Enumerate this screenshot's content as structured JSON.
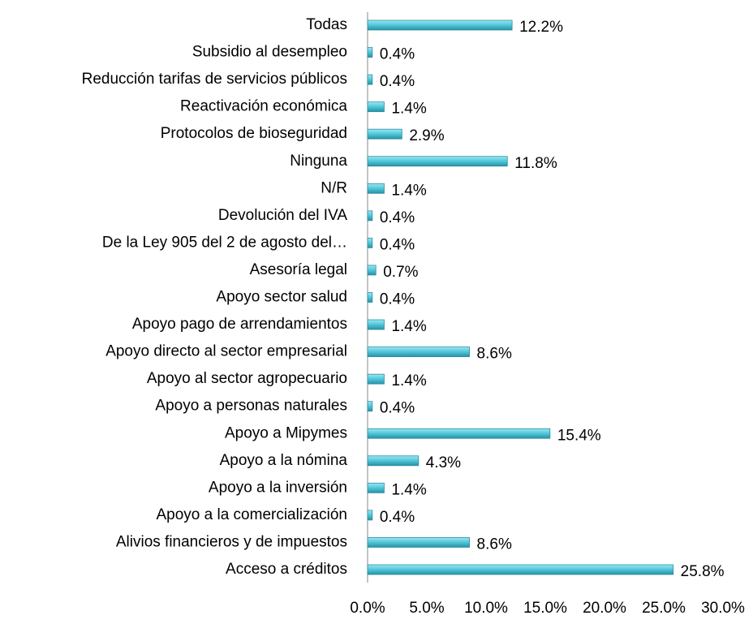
{
  "chart_data": {
    "type": "bar",
    "orientation": "horizontal",
    "categories": [
      "Todas",
      "Subsidio al desempleo",
      "Reducción tarifas de servicios públicos",
      "Reactivación económica",
      "Protocolos de bioseguridad",
      "Ninguna",
      "N/R",
      "Devolución del IVA",
      "De la Ley 905 del 2 de agosto del…",
      "Asesoría legal",
      "Apoyo sector salud",
      "Apoyo pago de arrendamientos",
      "Apoyo directo al sector empresarial",
      "Apoyo al sector agropecuario",
      "Apoyo a personas naturales",
      "Apoyo a Mipymes",
      "Apoyo a la nómina",
      "Apoyo a la inversión",
      "Apoyo a la comercialización",
      "Alivios financieros y de impuestos",
      "Acceso a créditos"
    ],
    "values": [
      12.2,
      0.4,
      0.4,
      1.4,
      2.9,
      11.8,
      1.4,
      0.4,
      0.4,
      0.7,
      0.4,
      1.4,
      8.6,
      1.4,
      0.4,
      15.4,
      4.3,
      1.4,
      0.4,
      8.6,
      25.8
    ],
    "value_labels": [
      "12.2%",
      "0.4%",
      "0.4%",
      "1.4%",
      "2.9%",
      "11.8%",
      "1.4%",
      "0.4%",
      "0.4%",
      "0.7%",
      "0.4%",
      "1.4%",
      "8.6%",
      "1.4%",
      "0.4%",
      "15.4%",
      "4.3%",
      "1.4%",
      "0.4%",
      "8.6%",
      "25.8%"
    ],
    "color": "#4fc6d9",
    "xlim": [
      0,
      30
    ],
    "xticks": [
      {
        "value": 0,
        "label": "0.0%"
      },
      {
        "value": 5,
        "label": "5.0%"
      },
      {
        "value": 10,
        "label": "10.0%"
      },
      {
        "value": 15,
        "label": "15.0%"
      },
      {
        "value": 20,
        "label": "20.0%"
      },
      {
        "value": 25,
        "label": "25.0%"
      },
      {
        "value": 30,
        "label": "30.0%"
      }
    ],
    "grid": false
  }
}
